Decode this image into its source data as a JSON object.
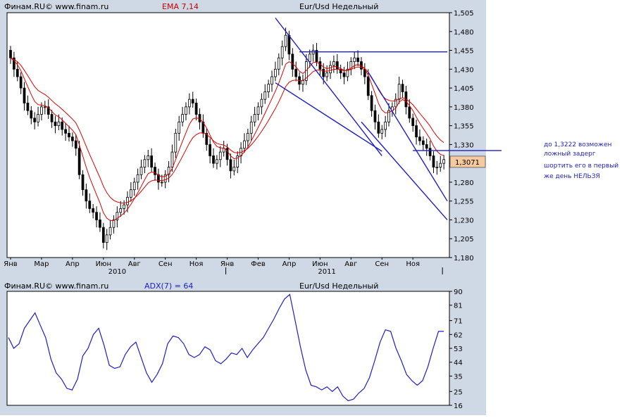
{
  "colors": {
    "panel_bg": "#cfd9e6",
    "plot_bg": "#ffffff",
    "candle_black": "#000000",
    "candle_white": "#ffffff",
    "ema": "#dd0000",
    "adx": "#1e1ec8",
    "trendline": "#1e1ec8",
    "last_price_box": "#f7c99e",
    "title_red": "#cc0000",
    "note_text": "#1e1ec8"
  },
  "header": {
    "brand": "Финам.RU©  www.finam.ru",
    "indicator": "EMA 7,14",
    "instrument": "Eur/Usd Недельный"
  },
  "header2": {
    "brand": "Финам.RU©  www.finam.ru",
    "indicator": "ADX(7) = 64",
    "instrument": "Eur/Usd Недельный"
  },
  "note": {
    "lines": [
      "до 1,3222 возможен",
      "ложный задерг",
      "шортить его в первый",
      "же день НЕЛЬЗЯ"
    ]
  },
  "chart_data": [
    {
      "type": "candlestick",
      "instrument": "Eur/Usd Недельный",
      "indicator": "EMA 7,14",
      "ylim": [
        1.18,
        1.505
      ],
      "yticks": [
        "1,505",
        "1,480",
        "1,455",
        "1,430",
        "1,405",
        "1,380",
        "1,355",
        "1,330",
        "1,305",
        "1,280",
        "1,255",
        "1,230",
        "1,205",
        "1,180"
      ],
      "xticks": [
        {
          "i": 0,
          "label": "Янв"
        },
        {
          "i": 9,
          "label": "Мар"
        },
        {
          "i": 18,
          "label": "Апр"
        },
        {
          "i": 27,
          "label": "Июн"
        },
        {
          "i": 36,
          "label": "Авг"
        },
        {
          "i": 45,
          "label": "Сен"
        },
        {
          "i": 54,
          "label": "Ноя"
        },
        {
          "i": 63,
          "label": "Янв"
        },
        {
          "i": 72,
          "label": "Фев"
        },
        {
          "i": 81,
          "label": "Апр"
        },
        {
          "i": 90,
          "label": "Июн"
        },
        {
          "i": 99,
          "label": "Авг"
        },
        {
          "i": 108,
          "label": "Сен"
        },
        {
          "i": 117,
          "label": "Ноя"
        }
      ],
      "years": [
        {
          "i": 31,
          "label": "2010"
        },
        {
          "i": 92,
          "label": "2011"
        }
      ],
      "last_price": "1,3071",
      "close": [
        1.445,
        1.43,
        1.42,
        1.405,
        1.385,
        1.375,
        1.365,
        1.36,
        1.37,
        1.38,
        1.38,
        1.37,
        1.36,
        1.355,
        1.36,
        1.35,
        1.345,
        1.34,
        1.335,
        1.325,
        1.29,
        1.27,
        1.255,
        1.245,
        1.24,
        1.23,
        1.22,
        1.2,
        1.21,
        1.22,
        1.23,
        1.24,
        1.245,
        1.25,
        1.26,
        1.27,
        1.28,
        1.29,
        1.3,
        1.31,
        1.315,
        1.3,
        1.29,
        1.28,
        1.28,
        1.29,
        1.3,
        1.32,
        1.345,
        1.36,
        1.37,
        1.38,
        1.39,
        1.385,
        1.37,
        1.36,
        1.345,
        1.33,
        1.315,
        1.305,
        1.31,
        1.32,
        1.325,
        1.31,
        1.295,
        1.3,
        1.315,
        1.325,
        1.335,
        1.345,
        1.36,
        1.37,
        1.38,
        1.39,
        1.4,
        1.41,
        1.42,
        1.43,
        1.445,
        1.46,
        1.475,
        1.45,
        1.43,
        1.42,
        1.41,
        1.415,
        1.44,
        1.45,
        1.455,
        1.44,
        1.43,
        1.42,
        1.425,
        1.435,
        1.44,
        1.43,
        1.425,
        1.42,
        1.43,
        1.44,
        1.445,
        1.44,
        1.43,
        1.42,
        1.395,
        1.375,
        1.36,
        1.345,
        1.35,
        1.36,
        1.375,
        1.38,
        1.39,
        1.41,
        1.4,
        1.38,
        1.365,
        1.355,
        1.34,
        1.335,
        1.33,
        1.325,
        1.315,
        1.3,
        1.3,
        1.305,
        1.31
      ],
      "ema": [
        {
          "name": "EMA 7",
          "period": 7
        },
        {
          "name": "EMA 14",
          "period": 14
        }
      ],
      "trendlines": [
        {
          "from": [
            77,
            1.498
          ],
          "to": [
            108,
            1.315
          ]
        },
        {
          "from": [
            77,
            1.412
          ],
          "to": [
            108,
            1.321
          ]
        },
        {
          "from": [
            104,
            1.426
          ],
          "to": [
            127,
            1.255
          ]
        },
        {
          "from": [
            102,
            1.36
          ],
          "to": [
            127,
            1.23
          ]
        },
        {
          "from": [
            84,
            1.453
          ],
          "to": [
            127,
            1.453
          ]
        },
        {
          "from": [
            117,
            1.322
          ],
          "to": [
            140,
            1.322
          ]
        }
      ]
    },
    {
      "type": "line",
      "indicator": "ADX(7) = 64",
      "ylim": [
        16,
        90
      ],
      "yticks": [
        "90",
        "81",
        "71",
        "62",
        "53",
        "44",
        "35",
        "25",
        "16"
      ],
      "series": [
        {
          "name": "ADX(7)",
          "values": [
            60,
            53,
            56,
            66,
            71,
            76,
            68,
            60,
            46,
            37,
            33,
            27,
            26,
            33,
            48,
            53,
            62,
            66,
            55,
            42,
            40,
            41,
            49,
            54,
            57,
            47,
            37,
            31,
            36,
            43,
            56,
            61,
            60,
            56,
            49,
            47,
            49,
            54,
            52,
            45,
            43,
            46,
            50,
            49,
            53,
            47,
            52,
            56,
            60,
            66,
            72,
            79,
            85,
            88,
            71,
            54,
            39,
            29,
            28,
            26,
            28,
            25,
            28,
            22,
            19,
            20,
            24,
            27,
            34,
            45,
            57,
            65,
            64,
            53,
            45,
            36,
            32,
            29,
            32,
            41,
            53,
            64,
            64
          ]
        }
      ]
    }
  ]
}
